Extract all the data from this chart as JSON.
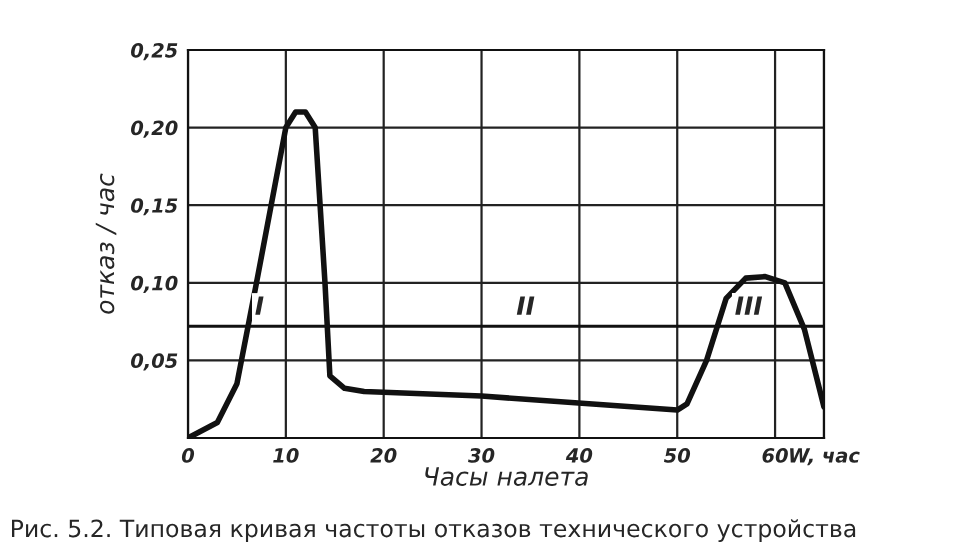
{
  "chart_data": {
    "type": "line",
    "xlabel": "Часы налета",
    "ylabel": "отказ / час",
    "x": [
      0,
      3,
      5,
      7,
      10,
      11,
      12,
      13,
      14,
      14.5,
      16,
      18,
      30,
      50,
      51,
      53,
      55,
      57,
      59,
      61,
      63,
      65
    ],
    "series": [
      {
        "color": "#111111",
        "values": [
          0,
          0.01,
          0.035,
          0.1,
          0.2,
          0.21,
          0.21,
          0.2,
          0.1,
          0.04,
          0.032,
          0.03,
          0.027,
          0.018,
          0.022,
          0.05,
          0.09,
          0.103,
          0.104,
          0.1,
          0.07,
          0.02
        ]
      }
    ],
    "xlim": [
      0,
      65
    ],
    "ylim": [
      0,
      0.25
    ],
    "xticks": [
      0,
      10,
      20,
      30,
      40,
      50,
      60,
      {
        "value": 65,
        "label": "W, час"
      }
    ],
    "yticks": [
      {
        "value": 0.05,
        "label": "0,05"
      },
      {
        "value": 0.1,
        "label": "0,10"
      },
      {
        "value": 0.15,
        "label": "0,15"
      },
      {
        "value": 0.2,
        "label": "0,20"
      },
      {
        "value": 0.25,
        "label": "0,25"
      }
    ],
    "grid": true,
    "ref_lines": [
      {
        "axis": "y",
        "value": 0.072,
        "color": "#111111"
      }
    ],
    "annotations": [
      {
        "text": "I",
        "x": 7.3,
        "y": 0.076
      },
      {
        "text": "II",
        "x": 34.5,
        "y": 0.076
      },
      {
        "text": "III",
        "x": 57.3,
        "y": 0.076
      },
      "Рис. 5.2. Типовая кривая частоты отказов технического устройства"
    ]
  }
}
